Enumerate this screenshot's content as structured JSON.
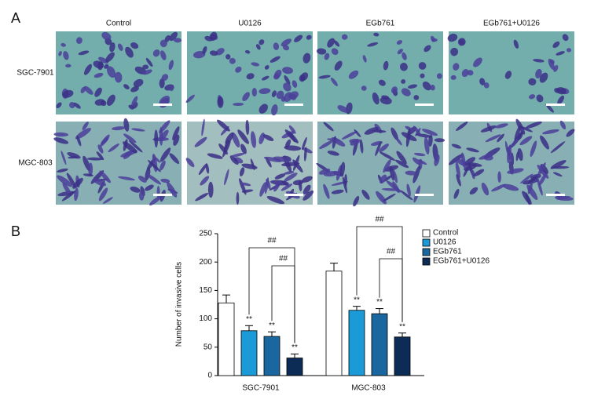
{
  "panel_a": {
    "label": "A",
    "columns": [
      "Control",
      "U0126",
      "EGb761",
      "EGb761+U0126"
    ],
    "rows": [
      "SGC-7901",
      "MGC-803"
    ]
  },
  "panel_b_label": "B",
  "chart_data": {
    "type": "bar",
    "y_label": "Number of invasive cells",
    "categories": [
      "SGC-7901",
      "MGC-803"
    ],
    "series": [
      {
        "name": "Control",
        "color": "#ffffff",
        "values": [
          128,
          184
        ],
        "errors": [
          14,
          14
        ]
      },
      {
        "name": "U0126",
        "color": "#1a9ad6",
        "values": [
          79,
          115
        ],
        "errors": [
          9,
          7
        ],
        "marks": [
          "**",
          "**"
        ]
      },
      {
        "name": "EGb761",
        "color": "#19679e",
        "values": [
          69,
          109
        ],
        "errors": [
          8,
          9
        ],
        "marks": [
          "**",
          "**"
        ]
      },
      {
        "name": "EGb761+U0126",
        "color": "#0d2c55",
        "values": [
          31,
          68
        ],
        "errors": [
          7,
          7
        ],
        "marks": [
          "**",
          "**"
        ]
      }
    ],
    "bracket_labels": [
      "##",
      "##",
      "##",
      "##"
    ],
    "ylim": [
      0,
      250
    ],
    "yticks": [
      0,
      50,
      100,
      150,
      200,
      250
    ],
    "legend": "right"
  }
}
